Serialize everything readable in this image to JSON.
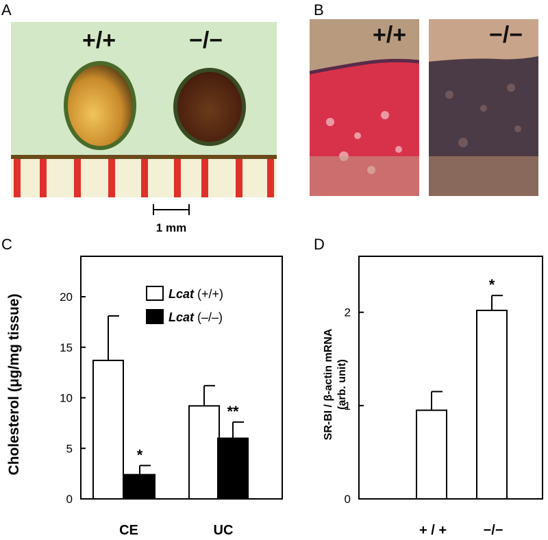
{
  "panel_labels": {
    "a": "A",
    "b": "B",
    "c": "C",
    "d": "D"
  },
  "panel_a": {
    "genotype_left": "+/+",
    "genotype_right": "−/−",
    "scale_bar_label": "1 mm",
    "colors": {
      "background": "#cfe6c0",
      "wt_gland": "#d9a23a",
      "ko_gland": "#5a2a14",
      "ruler_red": "#e0302a"
    }
  },
  "panel_b": {
    "genotype_left": "+/+",
    "genotype_right": "−/−",
    "colors": {
      "wt_tissue": "#d8324a",
      "ko_tissue": "#4b3b46"
    }
  },
  "chart_data": [
    {
      "type": "bar",
      "panel": "C",
      "ylabel": "Cholesterol (μg/mg tissue)",
      "categories": [
        "CE",
        "UC"
      ],
      "series": [
        {
          "name": "Lcat (+/+)",
          "legend_italic": "Lcat",
          "legend_suffix": " (+/+)",
          "fill": "#ffffff",
          "values": [
            13.7,
            9.2
          ],
          "errors": [
            4.4,
            2.0
          ],
          "annotations": [
            "",
            ""
          ]
        },
        {
          "name": "Lcat (–/–)",
          "legend_italic": "Lcat",
          "legend_suffix": " (–/–)",
          "fill": "#000000",
          "values": [
            2.4,
            6.0
          ],
          "errors": [
            0.9,
            1.6
          ],
          "annotations": [
            "*",
            "**"
          ]
        }
      ],
      "ylim": [
        0,
        24
      ],
      "yticks": [
        0,
        5,
        10,
        15,
        20
      ],
      "grid": false,
      "legend_position": "top-right"
    },
    {
      "type": "bar",
      "panel": "D",
      "ylabel": "SR-BI / β-actin mRNA",
      "ylabel2": "(arb. unit)",
      "categories": [
        "+ / +",
        "−/−"
      ],
      "values": [
        0.95,
        2.02
      ],
      "errors": [
        0.2,
        0.16
      ],
      "annotations": [
        "",
        "*"
      ],
      "ylim": [
        0,
        2.6
      ],
      "yticks": [
        0,
        1,
        2
      ],
      "grid": false
    }
  ]
}
